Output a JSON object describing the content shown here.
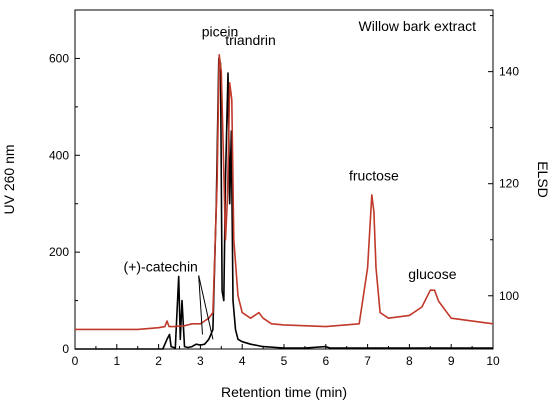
{
  "chart_data": {
    "type": "line",
    "title": "Willow bark extract",
    "xlabel": "Retention time (min)",
    "ylabel_left": "UV 260 nm",
    "ylabel_right": "ELSD",
    "xlim": [
      0,
      10
    ],
    "ylim_left": [
      0,
      700
    ],
    "ylim_right": [
      90.5,
      151
    ],
    "x_ticks": [
      "0",
      "1",
      "2",
      "3",
      "4",
      "5",
      "6",
      "7",
      "8",
      "9",
      "10"
    ],
    "y_left_ticks": [
      "0",
      "200",
      "400",
      "600"
    ],
    "y_right_ticks": [
      "100",
      "120",
      "140"
    ],
    "colors": {
      "uv": "#000000",
      "elsd": "#c0392b",
      "right_axis_label": "#c0392b"
    },
    "series": [
      {
        "axis": "left",
        "x": [
          0,
          2.1,
          2.2,
          2.26,
          2.3,
          2.4,
          2.48,
          2.52,
          2.56,
          2.62,
          2.7,
          2.8,
          2.9,
          3.0,
          3.1,
          3.2,
          3.3,
          3.38,
          3.44,
          3.48,
          3.52,
          3.56,
          3.6,
          3.66,
          3.7,
          3.74,
          3.78,
          3.84,
          3.9,
          4.0,
          4.2,
          4.5,
          5.0,
          5.5,
          6.0,
          6.1,
          6.2,
          7.0,
          8.0,
          8.5,
          9.0,
          9.5,
          10
        ],
        "y": [
          0,
          0,
          20,
          30,
          5,
          2,
          150,
          20,
          100,
          5,
          3,
          5,
          10,
          8,
          10,
          20,
          40,
          300,
          600,
          590,
          120,
          100,
          350,
          570,
          300,
          450,
          100,
          40,
          20,
          15,
          10,
          5,
          2,
          2,
          5,
          2,
          2,
          2,
          2,
          2,
          2,
          2,
          2
        ]
      },
      {
        "axis": "right",
        "x": [
          0,
          1.5,
          2.0,
          2.15,
          2.2,
          2.25,
          2.4,
          2.5,
          2.6,
          2.8,
          3.0,
          3.1,
          3.2,
          3.3,
          3.4,
          3.45,
          3.5,
          3.55,
          3.6,
          3.65,
          3.7,
          3.75,
          3.8,
          3.9,
          4.0,
          4.2,
          4.4,
          4.5,
          4.7,
          5.0,
          6.0,
          6.8,
          7.0,
          7.1,
          7.15,
          7.2,
          7.3,
          7.5,
          8.0,
          8.3,
          8.5,
          8.6,
          8.7,
          9.0,
          10
        ],
        "y": [
          94,
          94,
          94.3,
          94.5,
          95.5,
          94.5,
          94.5,
          94.6,
          94.6,
          95,
          95,
          95.5,
          96,
          97,
          120,
          143,
          140,
          125,
          110,
          118,
          138,
          135,
          110,
          100,
          97,
          96,
          97,
          96,
          95,
          94.8,
          94.5,
          95,
          105,
          118,
          115,
          105,
          97,
          96,
          96.5,
          98,
          101,
          101,
          99,
          96,
          95
        ]
      }
    ],
    "annotations": [
      {
        "text": "picein",
        "x": 3.47,
        "y_left": 645
      },
      {
        "text": "triandrin",
        "x": 4.2,
        "y_left": 628
      },
      {
        "text": "(+)-catechin",
        "x": 2.05,
        "y_left": 160
      },
      {
        "text": "fructose",
        "x": 7.15,
        "y_left": 348
      },
      {
        "text": "glucose",
        "x": 8.55,
        "y_left": 145
      }
    ],
    "grid": false,
    "legend": "none"
  }
}
